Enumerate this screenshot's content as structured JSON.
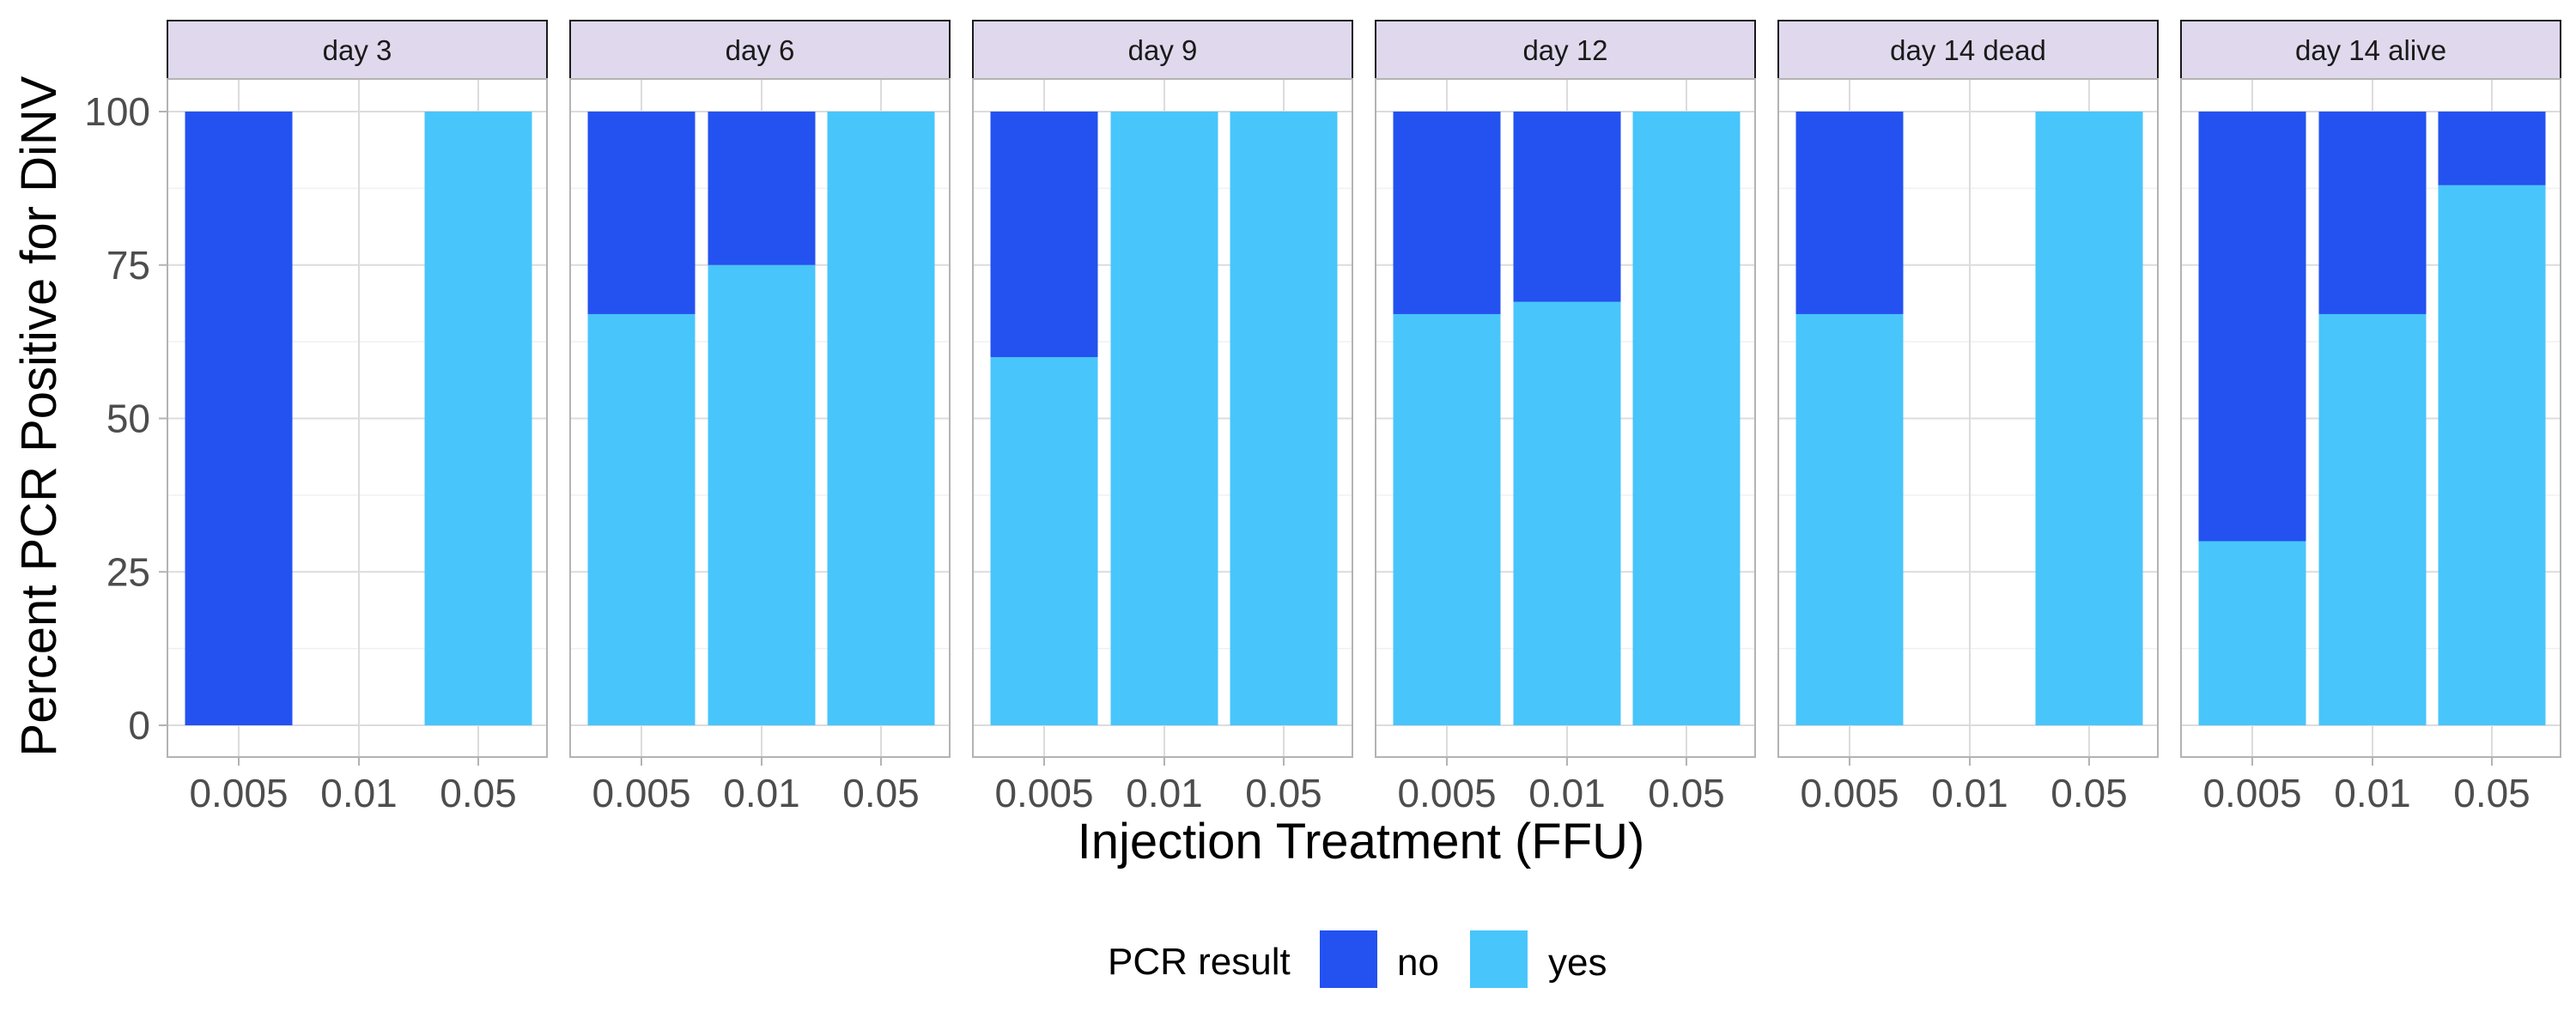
{
  "chart_data": {
    "type": "bar",
    "stacked": true,
    "percent": true,
    "xlabel": "Injection Treatment (FFU)",
    "ylabel": "Percent PCR Positive for DiNV",
    "ylim": [
      0,
      100
    ],
    "y_ticks": [
      "0",
      "25",
      "50",
      "75",
      "100"
    ],
    "categories": [
      "0.005",
      "0.01",
      "0.05"
    ],
    "grid": true,
    "legend": {
      "title": "PCR result",
      "position": "bottom",
      "entries": [
        {
          "name": "no",
          "color": "#2352F0"
        },
        {
          "name": "yes",
          "color": "#48C5FB"
        }
      ]
    },
    "colors": {
      "no": "#2352F0",
      "yes": "#48C5FB",
      "strip_fill": "#E0D8EC"
    },
    "panels": [
      {
        "label": "day 3",
        "bars": [
          {
            "x": "0.005",
            "yes": 0,
            "no": 100
          },
          {
            "x": "0.01",
            "yes": null,
            "no": null
          },
          {
            "x": "0.05",
            "yes": 100,
            "no": 0
          }
        ]
      },
      {
        "label": "day 6",
        "bars": [
          {
            "x": "0.005",
            "yes": 67,
            "no": 33
          },
          {
            "x": "0.01",
            "yes": 75,
            "no": 25
          },
          {
            "x": "0.05",
            "yes": 100,
            "no": 0
          }
        ]
      },
      {
        "label": "day 9",
        "bars": [
          {
            "x": "0.005",
            "yes": 60,
            "no": 40
          },
          {
            "x": "0.01",
            "yes": 100,
            "no": 0
          },
          {
            "x": "0.05",
            "yes": 100,
            "no": 0
          }
        ]
      },
      {
        "label": "day 12",
        "bars": [
          {
            "x": "0.005",
            "yes": 67,
            "no": 33
          },
          {
            "x": "0.01",
            "yes": 69,
            "no": 31
          },
          {
            "x": "0.05",
            "yes": 100,
            "no": 0
          }
        ]
      },
      {
        "label": "day 14 dead",
        "bars": [
          {
            "x": "0.005",
            "yes": 67,
            "no": 33
          },
          {
            "x": "0.01",
            "yes": null,
            "no": null
          },
          {
            "x": "0.05",
            "yes": 100,
            "no": 0
          }
        ]
      },
      {
        "label": "day 14 alive",
        "bars": [
          {
            "x": "0.005",
            "yes": 30,
            "no": 70
          },
          {
            "x": "0.01",
            "yes": 67,
            "no": 33
          },
          {
            "x": "0.05",
            "yes": 88,
            "no": 12
          }
        ]
      }
    ]
  }
}
